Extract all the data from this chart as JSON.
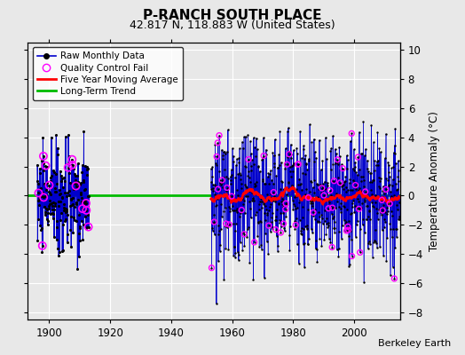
{
  "title": "P-RANCH SOUTH PLACE",
  "subtitle": "42.817 N, 118.883 W (United States)",
  "ylabel": "Temperature Anomaly (°C)",
  "credit": "Berkeley Earth",
  "xlim": [
    1893,
    2015
  ],
  "ylim": [
    -8.5,
    10.5
  ],
  "yticks": [
    -8,
    -6,
    -4,
    -2,
    0,
    2,
    4,
    6,
    8,
    10
  ],
  "xticks": [
    1900,
    1920,
    1940,
    1960,
    1980,
    2000
  ],
  "bg_color": "#e8e8e8",
  "plot_bg": "#e8e8e8",
  "grid_color": "#ffffff",
  "raw_color": "#0000cc",
  "qc_color": "#ff00ff",
  "ma_color": "#ff0000",
  "trend_color": "#00bb00",
  "period1_start": 1896,
  "period1_end": 1912,
  "period2_start": 1953,
  "period2_end": 2014,
  "seed": 42
}
